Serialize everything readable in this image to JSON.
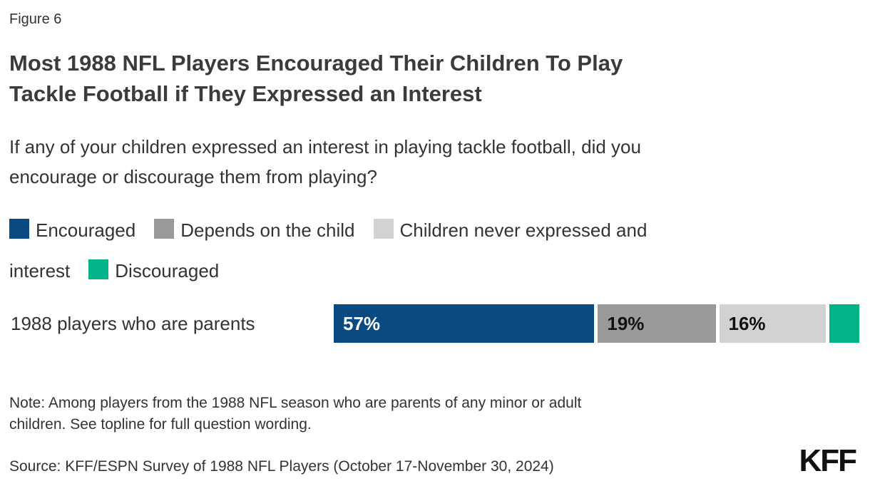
{
  "figure_label": "Figure 6",
  "title": "Most 1988 NFL Players Encouraged Their Children To Play Tackle Football if They Expressed an Interest",
  "question": "If any of your children expressed an interest in playing tackle football, did you encourage or discourage them from playing?",
  "legend": {
    "items": [
      {
        "label": "Encouraged",
        "color": "#0A4A80"
      },
      {
        "label": "Depends on the child",
        "color": "#9A9A9A"
      },
      {
        "label": "Children never expressed and interest",
        "color": "#D2D2D2"
      },
      {
        "label": "Discouraged",
        "color": "#00B487"
      }
    ]
  },
  "chart_data": {
    "type": "bar",
    "subtype": "stacked-horizontal",
    "categories": [
      "1988 players who are parents"
    ],
    "series": [
      {
        "name": "Encouraged",
        "values": [
          57
        ],
        "color": "#0A4A80",
        "data_label": "57%",
        "label_color": "#FFFFFF"
      },
      {
        "name": "Depends on the child",
        "values": [
          19
        ],
        "color": "#9A9A9A",
        "data_label": "19%",
        "label_color": "#111111"
      },
      {
        "name": "Children never expressed and interest",
        "values": [
          16
        ],
        "color": "#D2D2D2",
        "data_label": "16%",
        "label_color": "#111111"
      },
      {
        "name": "Discouraged",
        "values": [
          8
        ],
        "color": "#00B487",
        "data_label": "",
        "label_color": "#111111",
        "value_estimated_from_width": true
      }
    ],
    "xlim": [
      0,
      100
    ],
    "axes_visible": false,
    "grid": false,
    "legend_position": "top"
  },
  "note": "Note: Among players from the 1988 NFL season who are parents of any minor or adult children. See topline for full question wording.",
  "source": "Source: KFF/ESPN Survey of 1988 NFL Players (October 17-November 30, 2024)",
  "logo_text": "KFF"
}
